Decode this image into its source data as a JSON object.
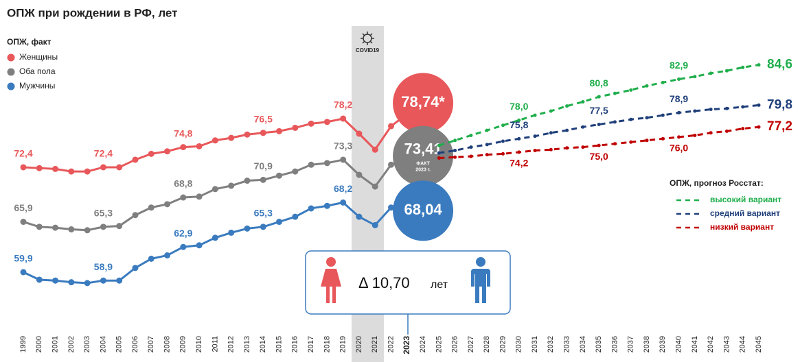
{
  "chart_data": {
    "type": "line",
    "title": "ОПЖ при рождении в РФ, лет",
    "fact_legend_title": "ОПЖ, факт",
    "forecast_legend_title": "ОПЖ, прогноз Росстат:",
    "covid_label": "COVID19",
    "circle_note": [
      "ФАКТ",
      "2023 г."
    ],
    "delta": {
      "label": "Δ 10,70",
      "unit": "лет"
    },
    "highlight_category": "2023",
    "ylim": [
      56,
      86
    ],
    "categories": [
      "1999",
      "2000",
      "2001",
      "2002",
      "2003",
      "2004",
      "2005",
      "2006",
      "2007",
      "2008",
      "2009",
      "2010",
      "2011",
      "2012",
      "2013",
      "2014",
      "2015",
      "2016",
      "2017",
      "2018",
      "2019",
      "2020",
      "2021",
      "2022",
      "2023",
      "2024",
      "2025",
      "2026",
      "2027",
      "2028",
      "2029",
      "2030",
      "2031",
      "2032",
      "2033",
      "2034",
      "2035",
      "2036",
      "2037",
      "2038",
      "2039",
      "2040",
      "2041",
      "2042",
      "2043",
      "2044",
      "2045"
    ],
    "series": [
      {
        "name": "Женщины",
        "color": "#e8575a",
        "dashed": false,
        "values": [
          72.4,
          72.3,
          72.2,
          71.9,
          71.9,
          72.4,
          72.4,
          73.3,
          74.0,
          74.3,
          74.8,
          74.9,
          75.6,
          75.9,
          76.3,
          76.5,
          76.7,
          77.1,
          77.6,
          77.8,
          78.2,
          76.4,
          74.5,
          77.3,
          78.74,
          null,
          null,
          null,
          null,
          null,
          null,
          null,
          null,
          null,
          null,
          null,
          null,
          null,
          null,
          null,
          null,
          null,
          null,
          null,
          null,
          null,
          null
        ],
        "value_labels": [
          "72,4",
          null,
          null,
          null,
          null,
          "72,4",
          null,
          null,
          null,
          null,
          "74,8",
          null,
          null,
          null,
          null,
          "76,5",
          null,
          null,
          null,
          null,
          "78,2",
          null,
          null,
          null,
          "78,74*",
          null,
          null,
          null,
          null,
          null,
          null,
          null,
          null,
          null,
          null,
          null,
          null,
          null,
          null,
          null,
          null,
          null,
          null,
          null,
          null,
          null,
          null
        ]
      },
      {
        "name": "Оба пола",
        "color": "#7f7f7f",
        "dashed": false,
        "values": [
          65.9,
          65.3,
          65.2,
          65.0,
          64.9,
          65.3,
          65.4,
          66.7,
          67.6,
          68.0,
          68.8,
          68.9,
          69.8,
          70.2,
          70.8,
          70.9,
          71.4,
          71.9,
          72.7,
          72.9,
          73.3,
          71.5,
          70.1,
          72.7,
          73.41,
          null,
          null,
          null,
          null,
          null,
          null,
          null,
          null,
          null,
          null,
          null,
          null,
          null,
          null,
          null,
          null,
          null,
          null,
          null,
          null,
          null,
          null
        ],
        "value_labels": [
          "65,9",
          null,
          null,
          null,
          null,
          "65,3",
          null,
          null,
          null,
          null,
          "68,8",
          null,
          null,
          null,
          null,
          "70,9",
          null,
          null,
          null,
          null,
          "73,3",
          null,
          null,
          null,
          "73,41",
          null,
          null,
          null,
          null,
          null,
          null,
          null,
          null,
          null,
          null,
          null,
          null,
          null,
          null,
          null,
          null,
          null,
          null,
          null,
          null,
          null,
          null
        ]
      },
      {
        "name": "Мужчины",
        "color": "#3a7bbf",
        "dashed": false,
        "values": [
          59.9,
          59.0,
          58.9,
          58.7,
          58.6,
          58.9,
          58.9,
          60.4,
          61.5,
          61.9,
          62.9,
          63.1,
          64.0,
          64.6,
          65.1,
          65.3,
          65.9,
          66.5,
          67.5,
          67.8,
          68.2,
          66.5,
          65.5,
          67.6,
          68.04,
          null,
          null,
          null,
          null,
          null,
          null,
          null,
          null,
          null,
          null,
          null,
          null,
          null,
          null,
          null,
          null,
          null,
          null,
          null,
          null,
          null,
          null
        ],
        "value_labels": [
          "59,9",
          null,
          null,
          null,
          null,
          "58,9",
          null,
          null,
          null,
          null,
          "62,9",
          null,
          null,
          null,
          null,
          "65,3",
          null,
          null,
          null,
          null,
          "68,2",
          null,
          null,
          null,
          "68,04",
          null,
          null,
          null,
          null,
          null,
          null,
          null,
          null,
          null,
          null,
          null,
          null,
          null,
          null,
          null,
          null,
          null,
          null,
          null,
          null,
          null,
          null
        ]
      },
      {
        "name": "высокий вариант",
        "color": "#1fae4b",
        "dashed": true,
        "values": [
          null,
          null,
          null,
          null,
          null,
          null,
          null,
          null,
          null,
          null,
          null,
          null,
          null,
          null,
          null,
          null,
          null,
          null,
          null,
          null,
          null,
          null,
          null,
          null,
          null,
          null,
          75.0,
          75.6,
          76.2,
          76.8,
          77.4,
          78.0,
          78.6,
          79.1,
          79.7,
          80.2,
          80.8,
          81.2,
          81.6,
          82.1,
          82.5,
          82.9,
          83.2,
          83.6,
          83.9,
          84.3,
          84.6
        ],
        "value_labels": [
          null,
          null,
          null,
          null,
          null,
          null,
          null,
          null,
          null,
          null,
          null,
          null,
          null,
          null,
          null,
          null,
          null,
          null,
          null,
          null,
          null,
          null,
          null,
          null,
          null,
          null,
          null,
          null,
          null,
          null,
          null,
          "78,0",
          null,
          null,
          null,
          null,
          "80,8",
          null,
          null,
          null,
          null,
          "82,9",
          null,
          null,
          null,
          null,
          "84,6"
        ]
      },
      {
        "name": "средний вариант",
        "color": "#1f3f7a",
        "dashed": true,
        "values": [
          null,
          null,
          null,
          null,
          null,
          null,
          null,
          null,
          null,
          null,
          null,
          null,
          null,
          null,
          null,
          null,
          null,
          null,
          null,
          null,
          null,
          null,
          null,
          null,
          null,
          null,
          74.1,
          74.4,
          74.8,
          75.1,
          75.5,
          75.8,
          76.1,
          76.5,
          76.8,
          77.2,
          77.5,
          77.8,
          78.1,
          78.3,
          78.6,
          78.9,
          79.1,
          79.3,
          79.4,
          79.6,
          79.8
        ],
        "value_labels": [
          null,
          null,
          null,
          null,
          null,
          null,
          null,
          null,
          null,
          null,
          null,
          null,
          null,
          null,
          null,
          null,
          null,
          null,
          null,
          null,
          null,
          null,
          null,
          null,
          null,
          null,
          null,
          null,
          null,
          null,
          null,
          "75,8",
          null,
          null,
          null,
          null,
          "77,5",
          null,
          null,
          null,
          null,
          "78,9",
          null,
          null,
          null,
          null,
          "79,8"
        ]
      },
      {
        "name": "низкий вариант",
        "color": "#c00000",
        "dashed": true,
        "values": [
          null,
          null,
          null,
          null,
          null,
          null,
          null,
          null,
          null,
          null,
          null,
          null,
          null,
          null,
          null,
          null,
          null,
          null,
          null,
          null,
          null,
          null,
          null,
          null,
          null,
          null,
          73.5,
          73.6,
          73.7,
          73.9,
          74.0,
          74.2,
          74.4,
          74.5,
          74.7,
          74.8,
          75.0,
          75.2,
          75.4,
          75.6,
          75.8,
          76.0,
          76.2,
          76.5,
          76.7,
          77.0,
          77.2
        ],
        "value_labels": [
          null,
          null,
          null,
          null,
          null,
          null,
          null,
          null,
          null,
          null,
          null,
          null,
          null,
          null,
          null,
          null,
          null,
          null,
          null,
          null,
          null,
          null,
          null,
          null,
          null,
          null,
          null,
          null,
          null,
          null,
          null,
          "74,2",
          null,
          null,
          null,
          null,
          "75,0",
          null,
          null,
          null,
          null,
          "76,0",
          null,
          null,
          null,
          null,
          "77,2"
        ]
      }
    ]
  }
}
